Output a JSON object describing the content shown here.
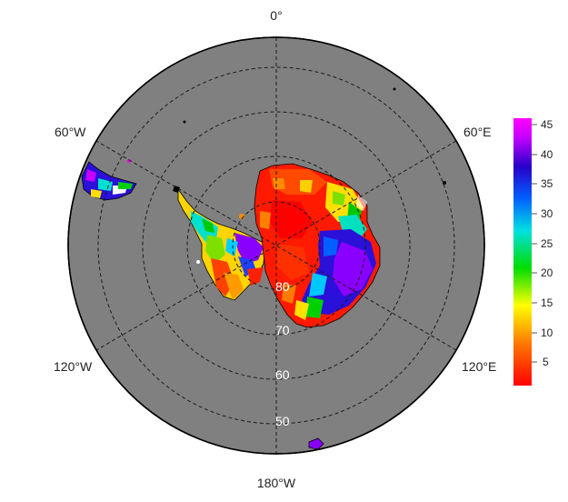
{
  "map": {
    "projection": "south-polar stereographic",
    "ocean_color": "#808080",
    "coast_color": "#000000",
    "graticule_color": "#1a1a1a",
    "longitude_labels": [
      "0°",
      "60°E",
      "120°E",
      "180°W",
      "120°W",
      "60°W"
    ],
    "latitude_labels": [
      "80",
      "70",
      "60",
      "50"
    ]
  },
  "colorbar": {
    "ticks": [
      "45",
      "40",
      "35",
      "30",
      "25",
      "20",
      "15",
      "10",
      "5"
    ],
    "range": [
      1,
      46
    ],
    "colors": [
      "#ff0000",
      "#ff7a00",
      "#ffff00",
      "#00dd00",
      "#00e0e0",
      "#0060ff",
      "#2800c8",
      "#c800ff",
      "#ff00ff"
    ]
  }
}
